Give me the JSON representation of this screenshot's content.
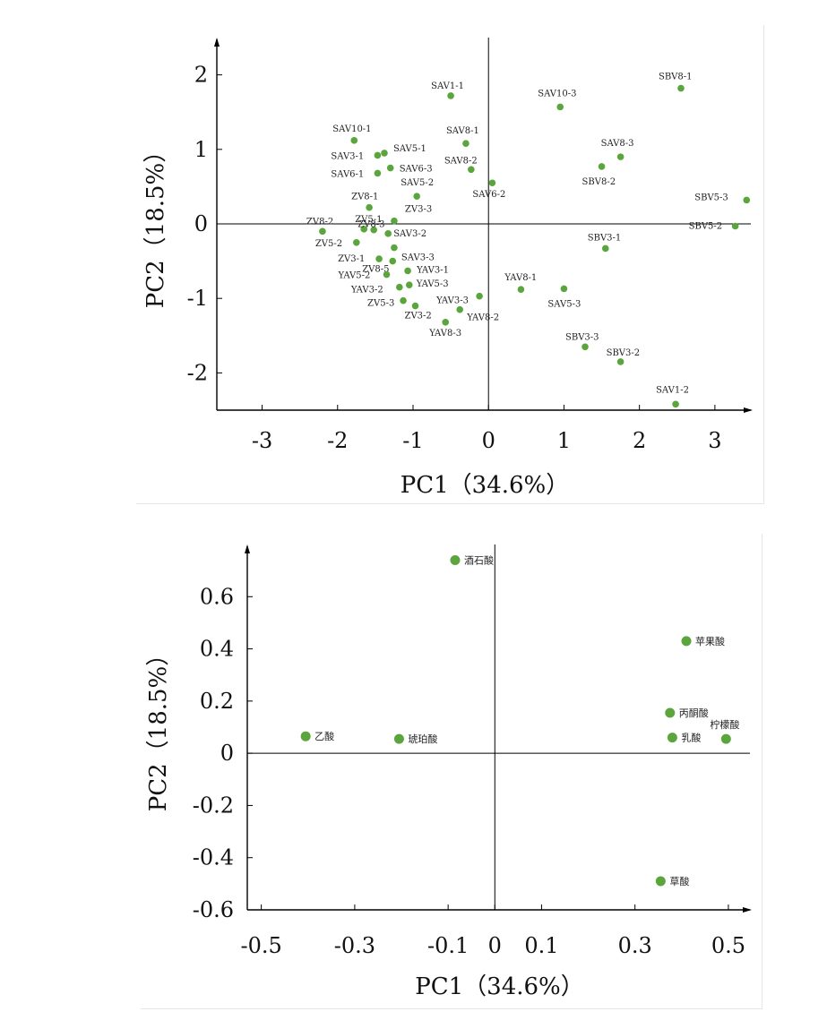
{
  "chart_data": [
    {
      "type": "scatter",
      "xlabel": "PC1（34.6%）",
      "ylabel": "PC2（18.5%）",
      "xlim": [
        -3.6,
        3.5
      ],
      "ylim": [
        -2.5,
        2.5
      ],
      "xticks": [
        -3,
        -2,
        -1,
        0,
        1,
        2,
        3
      ],
      "yticks": [
        -2,
        -1,
        0,
        1,
        2
      ],
      "xtick_labels": [
        "-3",
        "-2",
        "-1",
        "0",
        "1",
        "2",
        "3"
      ],
      "ytick_labels": [
        "-2",
        "-1",
        "0",
        "1",
        "2"
      ],
      "point_color": "#5aa63d",
      "points": [
        {
          "label": "SAV1-1",
          "x": -0.5,
          "y": 1.72
        },
        {
          "label": "SAV10-3",
          "x": 0.95,
          "y": 1.57
        },
        {
          "label": "SBV8-1",
          "x": 2.55,
          "y": 1.82
        },
        {
          "label": "SAV10-1",
          "x": -1.78,
          "y": 1.12
        },
        {
          "label": "SAV8-1",
          "x": -0.3,
          "y": 1.08
        },
        {
          "label": "SAV8-3",
          "x": 1.75,
          "y": 0.9
        },
        {
          "label": "SAV3-1",
          "x": -1.47,
          "y": 0.92
        },
        {
          "label": "SAV5-1",
          "x": -1.38,
          "y": 0.95
        },
        {
          "label": "SAV6-1",
          "x": -1.47,
          "y": 0.68
        },
        {
          "label": "SAV6-3",
          "x": -1.3,
          "y": 0.75
        },
        {
          "label": "SAV8-2",
          "x": -0.23,
          "y": 0.73
        },
        {
          "label": "SBV8-2",
          "x": 1.5,
          "y": 0.77
        },
        {
          "label": "SAV6-2",
          "x": 0.05,
          "y": 0.55
        },
        {
          "label": "SAV5-2",
          "x": -0.95,
          "y": 0.37
        },
        {
          "label": "SBV5-3",
          "x": 3.42,
          "y": 0.32
        },
        {
          "label": "ZV8-1",
          "x": -1.58,
          "y": 0.22
        },
        {
          "label": "ZV3-3",
          "x": -1.25,
          "y": 0.04
        },
        {
          "label": "ZV5-1",
          "x": -1.65,
          "y": -0.07
        },
        {
          "label": "ZV8-2",
          "x": -2.2,
          "y": -0.1
        },
        {
          "label": "ZV8-3",
          "x": -1.52,
          "y": -0.08
        },
        {
          "label": "SAV3-2",
          "x": -1.33,
          "y": -0.13
        },
        {
          "label": "SBV5-2",
          "x": 3.27,
          "y": -0.03
        },
        {
          "label": "ZV5-2",
          "x": -1.75,
          "y": -0.25
        },
        {
          "label": "SBV3-1",
          "x": 1.55,
          "y": -0.33
        },
        {
          "label": "SAV3-3",
          "x": -1.25,
          "y": -0.32
        },
        {
          "label": "ZV3-1",
          "x": -1.45,
          "y": -0.47
        },
        {
          "label": "ZV8-5",
          "x": -1.27,
          "y": -0.5
        },
        {
          "label": "YAV3-1",
          "x": -1.07,
          "y": -0.63
        },
        {
          "label": "YAV5-2",
          "x": -1.35,
          "y": -0.68
        },
        {
          "label": "YAV5-3",
          "x": -1.05,
          "y": -0.82
        },
        {
          "label": "YAV3-2",
          "x": -1.18,
          "y": -0.85
        },
        {
          "label": "YAV8-1",
          "x": 0.43,
          "y": -0.88
        },
        {
          "label": "SAV5-3",
          "x": 1.0,
          "y": -0.87
        },
        {
          "label": "YAV3-3",
          "x": -0.12,
          "y": -0.97
        },
        {
          "label": "ZV5-3",
          "x": -1.13,
          "y": -1.03
        },
        {
          "label": "ZV3-2",
          "x": -0.97,
          "y": -1.1
        },
        {
          "label": "YAV8-2",
          "x": -0.38,
          "y": -1.15
        },
        {
          "label": "YAV8-3",
          "x": -0.57,
          "y": -1.32
        },
        {
          "label": "SBV3-3",
          "x": 1.28,
          "y": -1.65
        },
        {
          "label": "SBV3-2",
          "x": 1.75,
          "y": -1.85
        },
        {
          "label": "SAV1-2",
          "x": 2.48,
          "y": -2.42
        }
      ]
    },
    {
      "type": "scatter",
      "xlabel": "PC1（34.6%）",
      "ylabel": "PC2（18.5%）",
      "xlim": [
        -0.53,
        0.55
      ],
      "ylim": [
        -0.6,
        0.8
      ],
      "xticks": [
        -0.5,
        -0.3,
        -0.1,
        0,
        0.1,
        0.3,
        0.5
      ],
      "yticks": [
        -0.6,
        -0.4,
        -0.2,
        0,
        0.2,
        0.4,
        0.6
      ],
      "xtick_labels": [
        "-0.5",
        "-0.3",
        "-0.1",
        "0",
        "0.1",
        "0.3",
        "0.5"
      ],
      "ytick_labels": [
        "-0.6",
        "-0.4",
        "-0.2",
        "0",
        "0.2",
        "0.4",
        "0.6"
      ],
      "point_color": "#5aa63d",
      "points": [
        {
          "label": "酒石酸",
          "x": -0.085,
          "y": 0.74
        },
        {
          "label": "苹果酸",
          "x": 0.41,
          "y": 0.43
        },
        {
          "label": "丙酮酸",
          "x": 0.375,
          "y": 0.155
        },
        {
          "label": "柠檬酸",
          "x": 0.495,
          "y": 0.055
        },
        {
          "label": "乳酸",
          "x": 0.38,
          "y": 0.06
        },
        {
          "label": "乙酸",
          "x": -0.405,
          "y": 0.065
        },
        {
          "label": "琥珀酸",
          "x": -0.205,
          "y": 0.055
        },
        {
          "label": "草酸",
          "x": 0.355,
          "y": -0.49
        }
      ]
    }
  ]
}
